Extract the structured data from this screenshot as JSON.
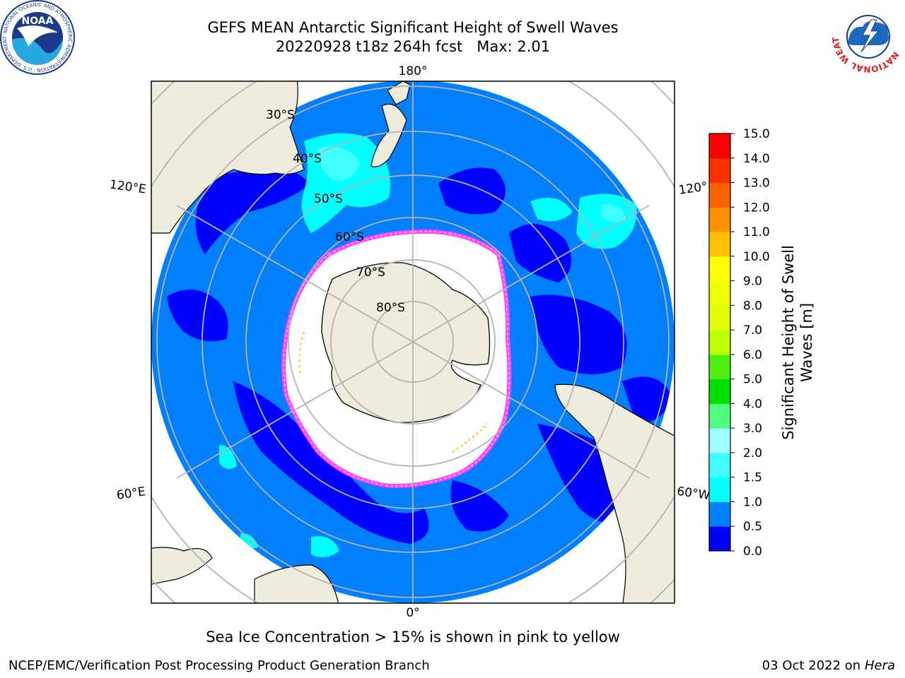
{
  "title": {
    "line1": "GEFS MEAN Antarctic Significant Height of Swell Waves",
    "line2": "20220928 t18z 264h fcst   Max: 2.01"
  },
  "map": {
    "longitude_labels": {
      "top": "180°",
      "bottom": "0°",
      "upper_left": "120°E",
      "upper_right": "120°",
      "lower_left": "60°E",
      "lower_right": "60°W"
    },
    "latitude_labels": [
      "30°S",
      "40°S",
      "50°S",
      "60°S",
      "70°S",
      "80°S"
    ],
    "ocean_color": "#0080ff",
    "low_wave_color": "#0000ff",
    "high_wave_color": "#00ffff",
    "land_color": "#eeecdc",
    "ice_colors": [
      "#ff00ff",
      "#ffa0ff",
      "#ffd040"
    ]
  },
  "colorbar": {
    "label": "Significant Height of Swell Waves [m]",
    "label_line1": "Significant Height of Swell",
    "label_line2": "Waves [m]",
    "ticks": [
      "15.0",
      "14.0",
      "13.0",
      "12.0",
      "11.0",
      "10.0",
      "9.0",
      "8.0",
      "7.0",
      "6.0",
      "5.0",
      "4.0",
      "3.0",
      "2.0",
      "1.5",
      "1.0",
      "0.5",
      "0.0"
    ],
    "bands": [
      {
        "from": 0.0,
        "to": 0.5,
        "color": "#0000ff"
      },
      {
        "from": 0.5,
        "to": 1.0,
        "color": "#0080ff"
      },
      {
        "from": 1.0,
        "to": 1.5,
        "color": "#00ffff"
      },
      {
        "from": 1.5,
        "to": 2.0,
        "color": "#40ffff"
      },
      {
        "from": 2.0,
        "to": 3.0,
        "color": "#a0ffff"
      },
      {
        "from": 3.0,
        "to": 4.0,
        "color": "#50ff80"
      },
      {
        "from": 4.0,
        "to": 5.0,
        "color": "#00e000"
      },
      {
        "from": 5.0,
        "to": 6.0,
        "color": "#50f010"
      },
      {
        "from": 6.0,
        "to": 7.0,
        "color": "#c0ff00"
      },
      {
        "from": 7.0,
        "to": 8.0,
        "color": "#e0ff00"
      },
      {
        "from": 8.0,
        "to": 9.0,
        "color": "#f0ff00"
      },
      {
        "from": 9.0,
        "to": 10.0,
        "color": "#ffff00"
      },
      {
        "from": 10.0,
        "to": 11.0,
        "color": "#ffc000"
      },
      {
        "from": 11.0,
        "to": 12.0,
        "color": "#ff9000"
      },
      {
        "from": 12.0,
        "to": 13.0,
        "color": "#ff6000"
      },
      {
        "from": 13.0,
        "to": 14.0,
        "color": "#ff3000"
      },
      {
        "from": 14.0,
        "to": 15.0,
        "color": "#ff0000"
      }
    ]
  },
  "footnote": "Sea Ice Concentration > 15% is shown in pink to yellow",
  "footer": {
    "left": "NCEP/EMC/Verification Post Processing Product Generation Branch",
    "right_prefix": "03 Oct 2022 on ",
    "right_host": "Hera"
  },
  "logos": {
    "noaa_text": "NOAA",
    "noaa_ring": "NATIONAL OCEANIC AND ATMOSPHERIC ADMINISTRATION · U.S. DEPARTMENT OF COMMERCE",
    "nws_ring": "NATIONAL WEATHER SERVICE"
  }
}
